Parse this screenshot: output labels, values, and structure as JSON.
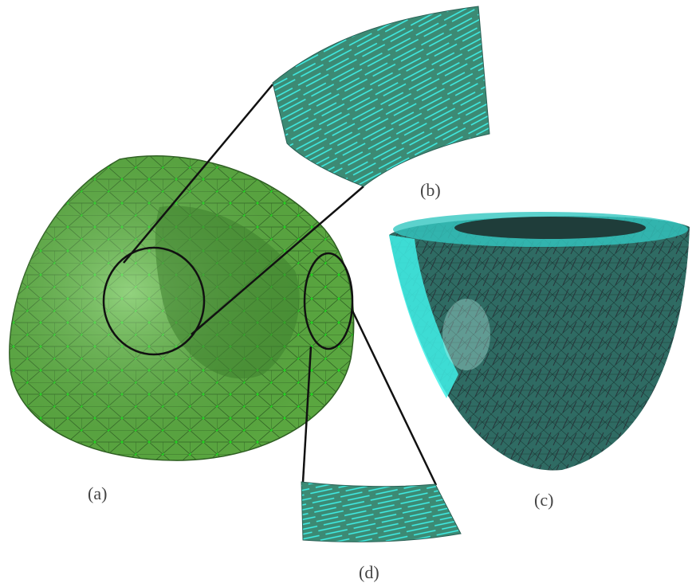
{
  "labels": {
    "a": "(a)",
    "b": "(b)",
    "c": "(c)",
    "d": "(d)"
  }
}
